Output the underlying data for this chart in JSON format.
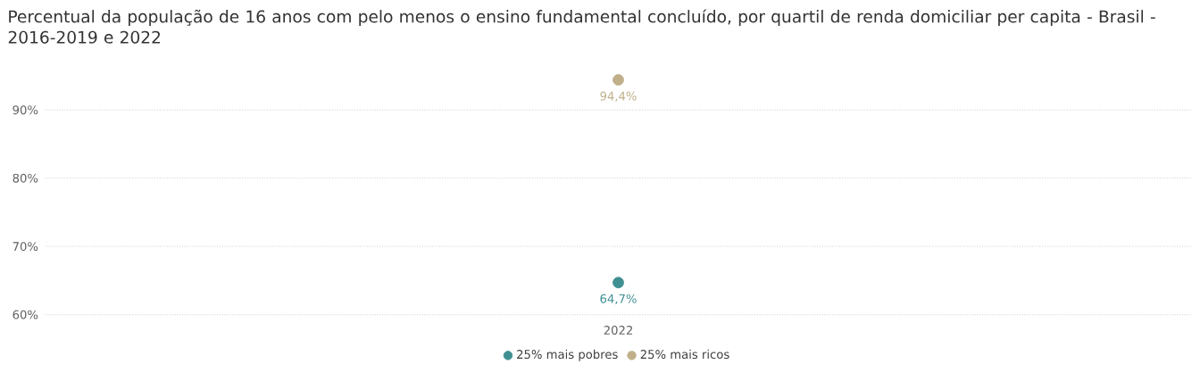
{
  "chart_data": {
    "type": "scatter",
    "title": "Percentual da população de 16 anos com pelo menos o ensino fundamental concluído, por quartil de renda domiciliar per capita - Brasil - 2016-2019 e 2022",
    "categories": [
      "2022"
    ],
    "series": [
      {
        "name": "25% mais pobres",
        "color": "#3f8f92",
        "values": [
          64.7
        ],
        "value_labels": [
          "64,7%"
        ]
      },
      {
        "name": "25% mais ricos",
        "color": "#bfb08a",
        "values": [
          94.4
        ],
        "value_labels": [
          "94,4%"
        ]
      }
    ],
    "ylim": [
      59.3,
      96.3
    ],
    "yticks": [
      {
        "value": 60,
        "label": "60%"
      },
      {
        "value": 70,
        "label": "70%"
      },
      {
        "value": 80,
        "label": "80%"
      },
      {
        "value": 90,
        "label": "90%"
      }
    ],
    "grid": "y",
    "legend": "bottom",
    "marker": "circle"
  }
}
